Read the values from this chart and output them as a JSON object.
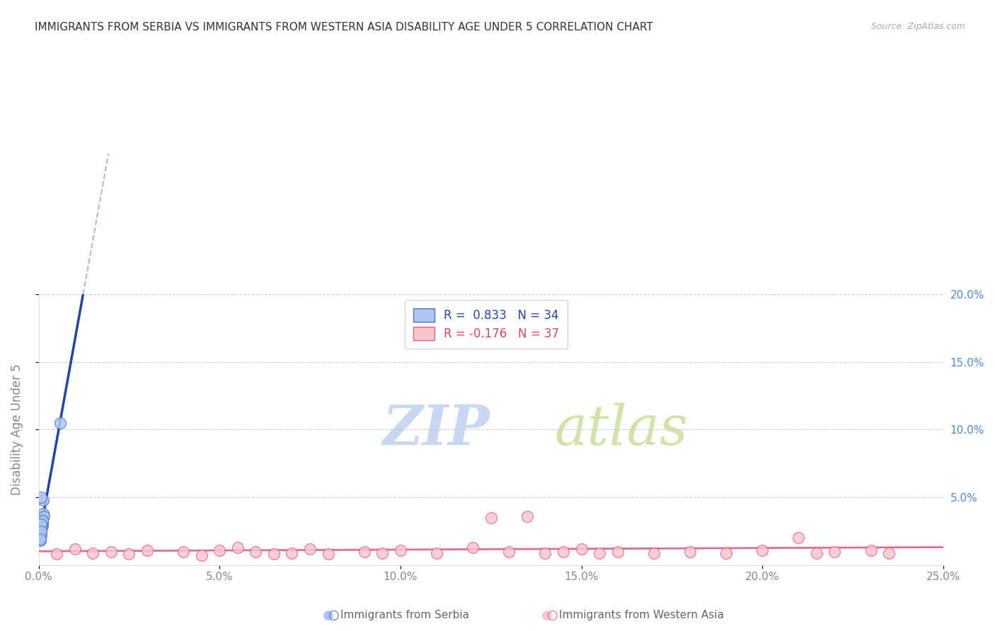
{
  "title": "IMMIGRANTS FROM SERBIA VS IMMIGRANTS FROM WESTERN ASIA DISABILITY AGE UNDER 5 CORRELATION CHART",
  "source": "Source: ZipAtlas.com",
  "ylabel": "Disability Age Under 5",
  "legend_label_blue": "Immigrants from Serbia",
  "legend_label_pink": "Immigrants from Western Asia",
  "R_blue": 0.833,
  "N_blue": 34,
  "R_pink": -0.176,
  "N_pink": 37,
  "xlim": [
    0.0,
    0.25
  ],
  "ylim": [
    0.0,
    0.2
  ],
  "xticks": [
    0.0,
    0.05,
    0.1,
    0.15,
    0.2,
    0.25
  ],
  "yticks_right": [
    0.05,
    0.1,
    0.15,
    0.2
  ],
  "yticks_grid": [
    0.05,
    0.1,
    0.15,
    0.2
  ],
  "blue_scatter_x": [
    0.0008,
    0.001,
    0.0005,
    0.0006,
    0.0009,
    0.0012,
    0.0007,
    0.0005,
    0.001,
    0.0015,
    0.0008,
    0.0011,
    0.0006,
    0.0009,
    0.0005,
    0.001,
    0.0008,
    0.0006,
    0.0007,
    0.001,
    0.0005,
    0.0008,
    0.0005,
    0.0004,
    0.0009,
    0.0007,
    0.0004,
    0.0004,
    0.0006,
    0.0007,
    0.0004,
    0.0012,
    0.0007,
    0.006
  ],
  "blue_scatter_y": [
    0.032,
    0.035,
    0.028,
    0.025,
    0.033,
    0.038,
    0.03,
    0.026,
    0.031,
    0.036,
    0.03,
    0.033,
    0.027,
    0.029,
    0.022,
    0.029,
    0.03,
    0.024,
    0.027,
    0.033,
    0.025,
    0.028,
    0.022,
    0.02,
    0.028,
    0.03,
    0.022,
    0.018,
    0.022,
    0.025,
    0.019,
    0.048,
    0.05,
    0.105
  ],
  "pink_scatter_x": [
    0.005,
    0.01,
    0.015,
    0.02,
    0.025,
    0.03,
    0.04,
    0.045,
    0.05,
    0.055,
    0.06,
    0.065,
    0.07,
    0.075,
    0.08,
    0.09,
    0.095,
    0.1,
    0.11,
    0.12,
    0.125,
    0.13,
    0.135,
    0.14,
    0.145,
    0.15,
    0.155,
    0.16,
    0.17,
    0.18,
    0.19,
    0.2,
    0.21,
    0.215,
    0.22,
    0.23,
    0.235
  ],
  "pink_scatter_y": [
    0.008,
    0.012,
    0.009,
    0.01,
    0.008,
    0.011,
    0.01,
    0.007,
    0.011,
    0.013,
    0.01,
    0.008,
    0.009,
    0.012,
    0.008,
    0.01,
    0.009,
    0.011,
    0.009,
    0.013,
    0.035,
    0.01,
    0.036,
    0.009,
    0.01,
    0.012,
    0.009,
    0.01,
    0.009,
    0.01,
    0.009,
    0.011,
    0.02,
    0.009,
    0.01,
    0.011,
    0.009
  ],
  "blue_color": "#AEC6F6",
  "blue_edge_color": "#4472C4",
  "pink_color": "#F9C6D0",
  "pink_edge_color": "#E06080",
  "blue_line_color": "#2244AA",
  "pink_line_color": "#E07090",
  "dashed_line_color": "#AABBDD",
  "background_color": "#FFFFFF",
  "grid_color": "#CCCCCC",
  "title_color": "#333333",
  "ylabel_color": "#888888",
  "right_tick_color": "#5588DD",
  "watermark_zip_color": "#C8D8F0",
  "watermark_atlas_color": "#D0E4A8",
  "figsize": [
    14.06,
    8.92
  ],
  "dpi": 100
}
